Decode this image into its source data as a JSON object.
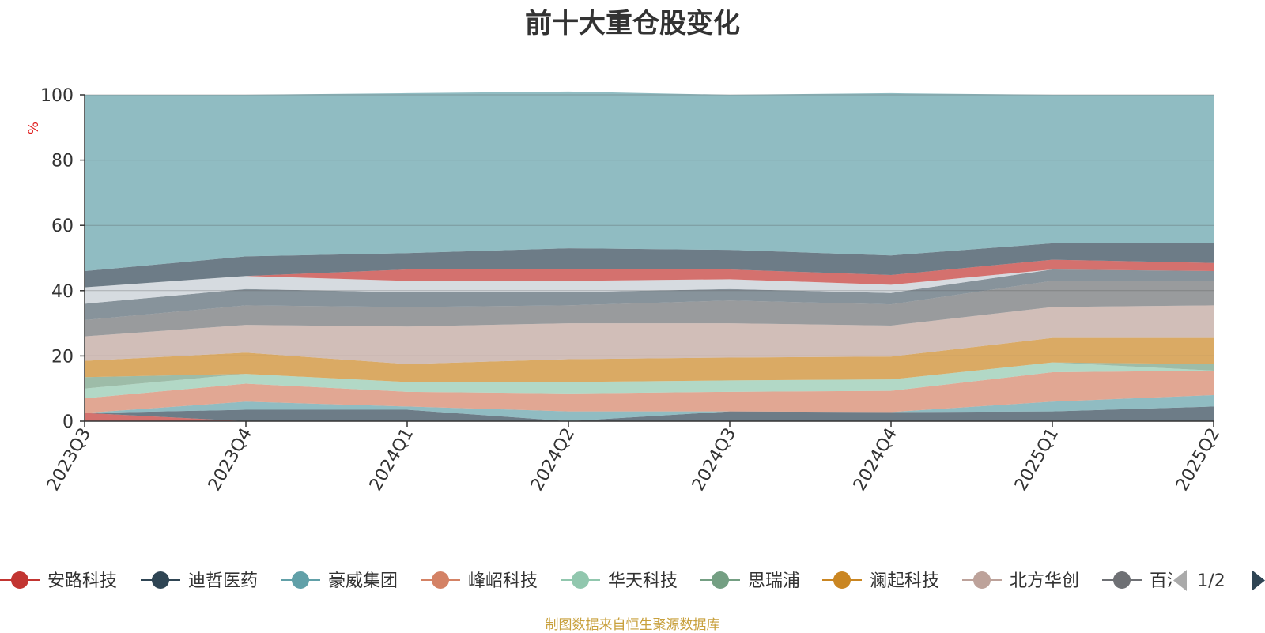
{
  "chart_data": {
    "type": "area",
    "stacked": true,
    "title": "前十大重仓股变化",
    "ylabel": "%",
    "ylim": [
      0,
      100
    ],
    "yticks": [
      0,
      20,
      40,
      60,
      80,
      100
    ],
    "grid": true,
    "categories": [
      "2023Q3",
      "2023Q4",
      "2024Q1",
      "2024Q2",
      "2024Q3",
      "2024Q4",
      "2025Q1",
      "2025Q2"
    ],
    "series": [
      {
        "name": "安路科技",
        "color": "#c23531",
        "values": [
          2.5,
          0.0,
          0.0,
          0.0,
          0.0,
          0.0,
          0.0,
          0.0
        ]
      },
      {
        "name": "迪哲医药",
        "color": "#2f4554",
        "values": [
          0.0,
          3.5,
          3.5,
          0.0,
          3.0,
          2.8,
          3.0,
          4.5
        ]
      },
      {
        "name": "豪威集团",
        "color": "#61a0a8",
        "values": [
          0.0,
          2.5,
          1.0,
          3.0,
          0.0,
          0.0,
          3.0,
          3.5
        ]
      },
      {
        "name": "峰岹科技",
        "color": "#d48265",
        "values": [
          4.5,
          5.5,
          4.5,
          5.5,
          6.0,
          6.5,
          9.0,
          7.5
        ]
      },
      {
        "name": "华天科技",
        "color": "#91c7ae",
        "values": [
          3.0,
          3.0,
          3.0,
          3.5,
          3.5,
          3.5,
          3.0,
          0.0
        ]
      },
      {
        "name": "思瑞浦",
        "color": "#749f83",
        "values": [
          3.5,
          0.0,
          0.0,
          0.0,
          0.0,
          0.0,
          0.0,
          2.0
        ]
      },
      {
        "name": "澜起科技",
        "color": "#ca8622",
        "values": [
          5.0,
          6.5,
          5.5,
          7.0,
          7.0,
          7.0,
          7.5,
          8.0
        ]
      },
      {
        "name": "北方华创",
        "color": "#bda29a",
        "values": [
          7.5,
          8.5,
          11.5,
          11.0,
          10.5,
          9.5,
          9.5,
          10.0
        ]
      },
      {
        "name": "百济神州",
        "color": "#6e7074",
        "values": [
          5.0,
          6.0,
          6.0,
          5.5,
          7.0,
          6.5,
          8.0,
          7.5
        ]
      },
      {
        "name": "",
        "color": "#546570",
        "values": [
          5.0,
          5.0,
          4.5,
          4.0,
          3.5,
          3.5,
          3.5,
          3.0
        ]
      },
      {
        "name": "",
        "color": "#c4ccd3",
        "values": [
          5.0,
          4.0,
          3.5,
          3.5,
          3.0,
          2.5,
          0.0,
          0.0
        ]
      },
      {
        "name": "",
        "color": "#c23531",
        "values": [
          0.0,
          0.0,
          3.5,
          3.5,
          3.0,
          3.0,
          3.0,
          2.5
        ]
      },
      {
        "name": "",
        "color": "#2f4554",
        "values": [
          5.0,
          6.0,
          5.0,
          6.5,
          6.0,
          6.0,
          5.0,
          6.0
        ]
      },
      {
        "name": "",
        "color": "#61a0a8",
        "values": [
          54.0,
          49.5,
          49.0,
          48.0,
          47.5,
          49.7,
          45.5,
          45.5
        ]
      }
    ]
  },
  "legend": {
    "items": [
      {
        "name": "安路科技",
        "color": "#c23531"
      },
      {
        "name": "迪哲医药",
        "color": "#2f4554"
      },
      {
        "name": "豪威集团",
        "color": "#61a0a8"
      },
      {
        "name": "峰岹科技",
        "color": "#d48265"
      },
      {
        "name": "华天科技",
        "color": "#91c7ae"
      },
      {
        "name": "思瑞浦",
        "color": "#749f83"
      },
      {
        "name": "澜起科技",
        "color": "#ca8622"
      },
      {
        "name": "北方华创",
        "color": "#bda29a"
      },
      {
        "name": "百济神州",
        "color": "#6e7074"
      }
    ],
    "page_indicator": "1/2",
    "prev_icon": "triangle-left-icon",
    "next_icon": "triangle-right-icon"
  },
  "source_note": "制图数据来自恒生聚源数据库"
}
